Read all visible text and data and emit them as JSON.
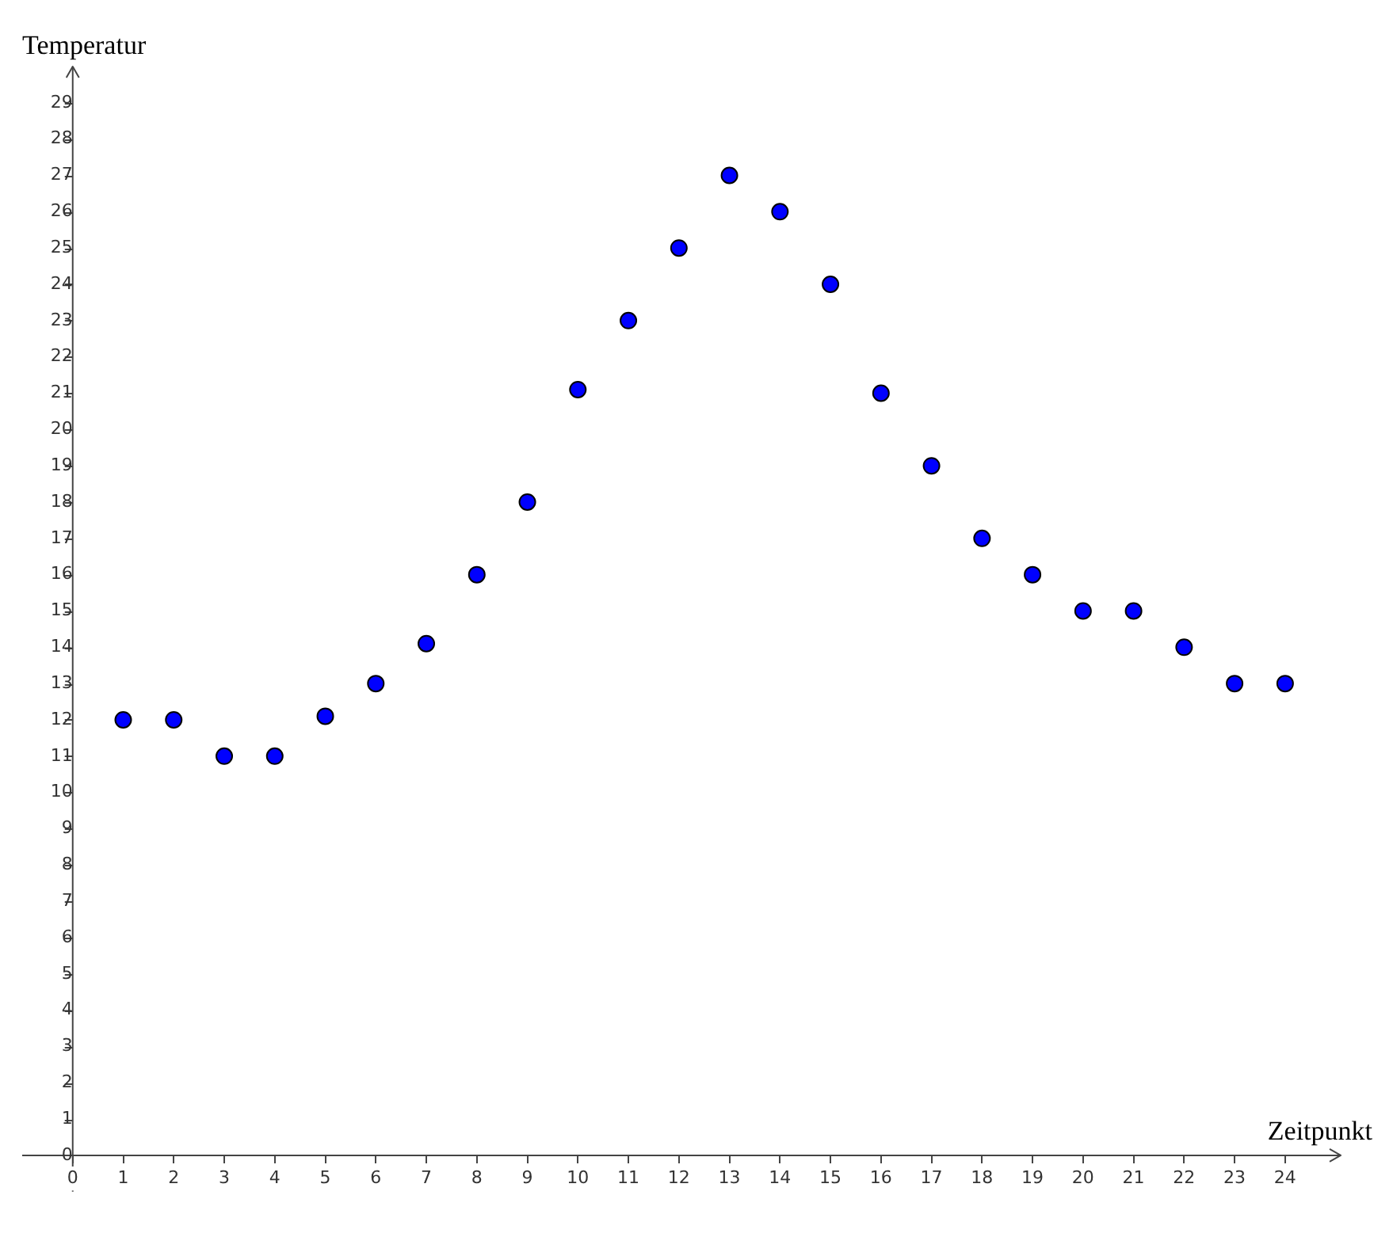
{
  "chart_data": {
    "type": "scatter",
    "xlabel": "Zeitpunkt",
    "ylabel": "Temperatur",
    "x": [
      1,
      2,
      3,
      4,
      5,
      6,
      7,
      8,
      9,
      10,
      11,
      12,
      13,
      14,
      15,
      16,
      17,
      18,
      19,
      20,
      21,
      22,
      23,
      24
    ],
    "series": [
      {
        "color": "#0000ff",
        "values": [
          12,
          12,
          11,
          11,
          12.1,
          13,
          14.1,
          16,
          18,
          21.1,
          23,
          25,
          27,
          26,
          24,
          21,
          19,
          17,
          16,
          15,
          15,
          14,
          13,
          13
        ]
      }
    ],
    "xlim": [
      -1,
      25.1
    ],
    "ylim": [
      -1,
      30
    ],
    "xticks": [
      0,
      1,
      2,
      3,
      4,
      5,
      6,
      7,
      8,
      9,
      10,
      11,
      12,
      13,
      14,
      15,
      16,
      17,
      18,
      19,
      20,
      21,
      22,
      23,
      24
    ],
    "yticks": [
      0,
      1,
      2,
      3,
      4,
      5,
      6,
      7,
      8,
      9,
      10,
      11,
      12,
      13,
      14,
      15,
      16,
      17,
      18,
      19,
      20,
      21,
      22,
      23,
      24,
      25,
      26,
      27,
      28,
      29
    ],
    "marker": "circle",
    "grid": false,
    "legend": false
  }
}
